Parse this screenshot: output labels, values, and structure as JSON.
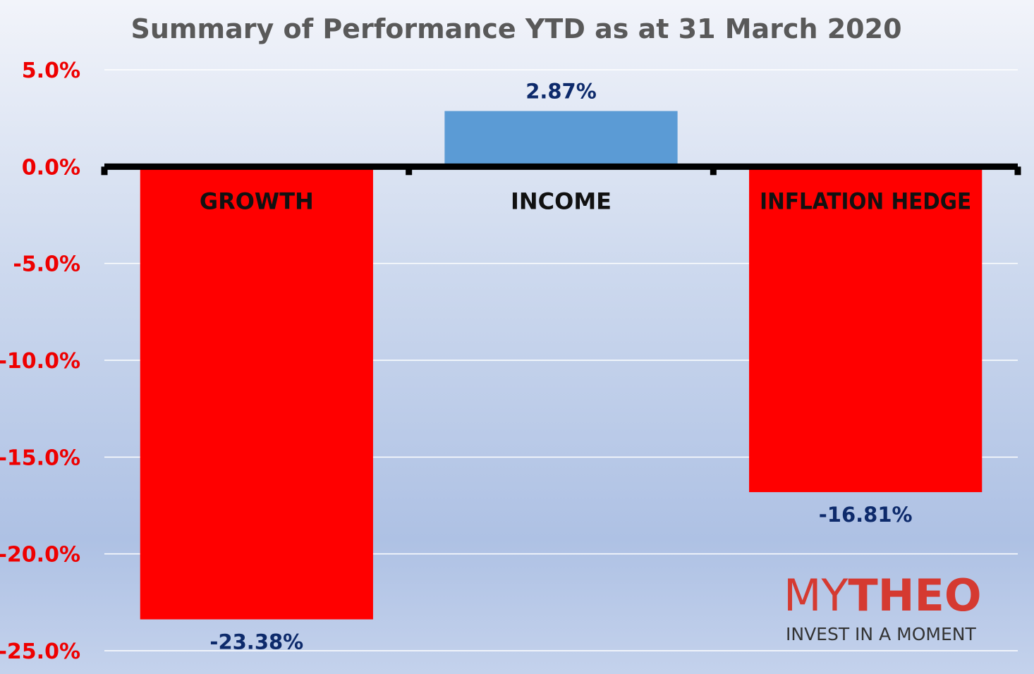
{
  "chart_data": {
    "type": "bar",
    "title": "Summary of Performance YTD as at 31 March 2020",
    "categories": [
      "GROWTH",
      "INCOME",
      "INFLATION HEDGE"
    ],
    "values": [
      -23.38,
      2.87,
      -16.81
    ],
    "value_labels": [
      "-23.38%",
      "2.87%",
      "-16.81%"
    ],
    "ylim": [
      -25,
      5
    ],
    "yticks": [
      5,
      0,
      -5,
      -10,
      -15,
      -20,
      -25
    ],
    "ytick_labels": [
      "5.0%",
      "0.0%",
      "-5.0%",
      "-10.0%",
      "-15.0%",
      "-20.0%",
      "-25.0%"
    ],
    "xlabel": "",
    "ylabel": "",
    "grid": true,
    "legend": "none",
    "colors": {
      "negative_bar": "#ff0000",
      "positive_bar": "#5b9bd5",
      "tick_label": "#ee0000",
      "value_label": "#0d2a6b",
      "title": "#595959",
      "category_label": "#111111",
      "axis_line": "#000000",
      "gridline": "#ffffff"
    }
  },
  "logo": {
    "wordmark_light": "MY",
    "wordmark_bold": "THEO",
    "tagline": "INVEST IN A MOMENT",
    "colors": {
      "brand": "#d53a31",
      "tagline": "#333333"
    }
  }
}
